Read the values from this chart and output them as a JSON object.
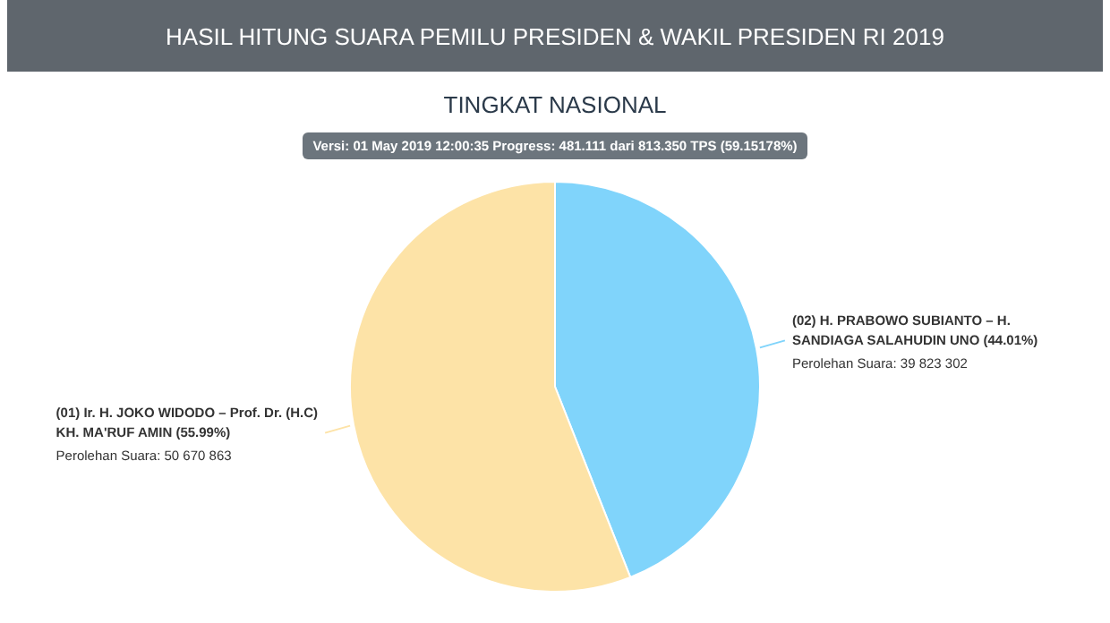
{
  "chart_data": {
    "type": "pie",
    "title": "HASIL HITUNG SUARA PEMILU PRESIDEN & WAKIL PRESIDEN RI 2019",
    "subtitle": "TINGKAT NASIONAL",
    "annotations": [
      "Versi: 01 May 2019 12:00:35 Progress: 481.111 dari 813.350 TPS (59.15178%)"
    ],
    "categories": [
      "(02) H. PRABOWO SUBIANTO – H. SANDIAGA SALAHUDIN UNO (44.01%)",
      "(01) Ir. H. JOKO WIDODO – Prof. Dr. (H.C) KH. MA'RUF AMIN (55.99%)"
    ],
    "values": [
      39823302,
      50670863
    ],
    "value_labels": [
      "Perolehan Suara: 39 823 302",
      "Perolehan Suara: 50 670 863"
    ],
    "colors": [
      "#80d4fb",
      "#fde3a7"
    ],
    "legend": false
  }
}
